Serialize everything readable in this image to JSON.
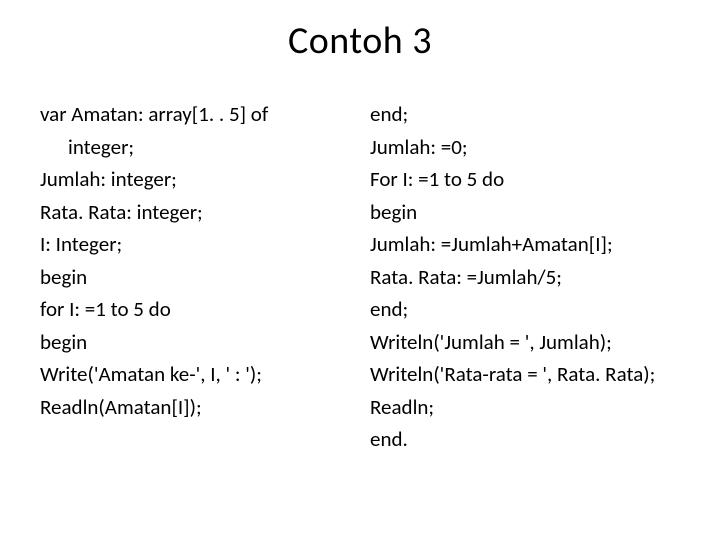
{
  "title": "Contoh 3",
  "left": {
    "l1a": "var Amatan: array[1. . 5] of",
    "l1b": "integer;",
    "l2": "Jumlah: integer;",
    "l3": "Rata. Rata: integer;",
    "l4": "I: Integer;",
    "l5": "begin",
    "l6": "for I: =1 to 5 do",
    "l7": "begin",
    "l8": "Write('Amatan ke-', I, ' : ');",
    "l9": "Readln(Amatan[I]);"
  },
  "right": {
    "r1": "end;",
    "r2": "Jumlah: =0;",
    "r3": "For I: =1 to 5 do",
    "r4": "begin",
    "r5": "Jumlah: =Jumlah+Amatan[I];",
    "r6": "Rata. Rata: =Jumlah/5;",
    "r7": "end;",
    "r8": "Writeln('Jumlah = ', Jumlah);",
    "r9": "Writeln('Rata-rata = ', Rata. Rata);",
    "r10": "Readln;",
    "r11": "end."
  },
  "style": {
    "title_fontsize": 38,
    "body_fontsize": 21,
    "line_height": 1.55,
    "text_color": "#000000",
    "background_color": "#ffffff",
    "font_family": "Calibri"
  }
}
